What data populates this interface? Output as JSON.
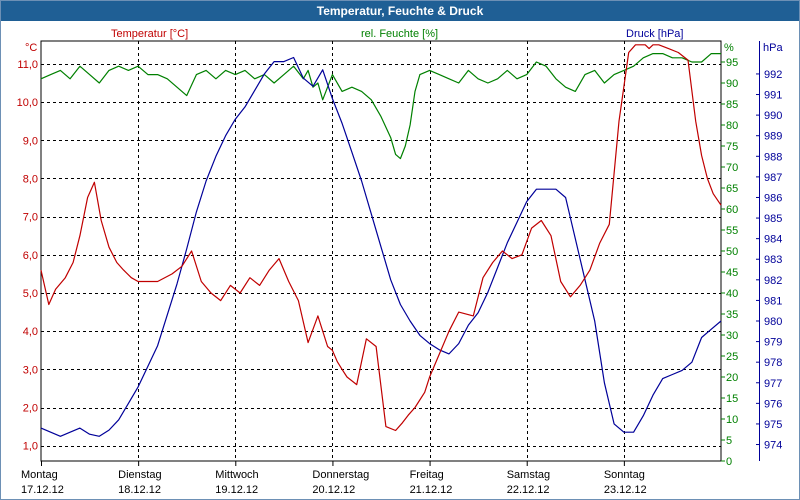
{
  "window": {
    "title": "Temperatur, Feuchte & Druck"
  },
  "colors": {
    "temperature": "#c00000",
    "humidity": "#008000",
    "pressure": "#000099",
    "titlebar": "#1f5f95",
    "grid": "#000000"
  },
  "chart_data": {
    "type": "line",
    "title": "Temperatur, Feuchte & Druck",
    "grid": true,
    "x_categories": [
      {
        "day": "Montag",
        "date": "17.12.12"
      },
      {
        "day": "Dienstag",
        "date": "18.12.12"
      },
      {
        "day": "Mittwoch",
        "date": "19.12.12"
      },
      {
        "day": "Donnerstag",
        "date": "20.12.12"
      },
      {
        "day": "Freitag",
        "date": "21.12.12"
      },
      {
        "day": "Samstag",
        "date": "22.12.12"
      },
      {
        "day": "Sonntag",
        "date": "23.12.12"
      }
    ],
    "x_range_days": [
      0,
      7
    ],
    "axes": {
      "temperature": {
        "label": "Temperatur [°C]",
        "unit": "°C",
        "range": [
          0.6,
          11.6
        ],
        "ticks": [
          "1,0",
          "2,0",
          "3,0",
          "4,0",
          "5,0",
          "6,0",
          "7,0",
          "8,0",
          "9,0",
          "10,0",
          "11,0"
        ],
        "tick_values": [
          1,
          2,
          3,
          4,
          5,
          6,
          7,
          8,
          9,
          10,
          11
        ]
      },
      "humidity": {
        "label": "rel. Feuchte [%]",
        "unit": "%",
        "range": [
          0,
          100
        ],
        "ticks": [
          "0",
          "5",
          "10",
          "15",
          "20",
          "25",
          "30",
          "35",
          "40",
          "45",
          "50",
          "55",
          "60",
          "65",
          "70",
          "75",
          "80",
          "85",
          "90",
          "95"
        ],
        "tick_values": [
          0,
          5,
          10,
          15,
          20,
          25,
          30,
          35,
          40,
          45,
          50,
          55,
          60,
          65,
          70,
          75,
          80,
          85,
          90,
          95
        ]
      },
      "pressure": {
        "label": "Druck [hPa]",
        "unit": "hPa",
        "range": [
          973.2,
          993.6
        ],
        "ticks": [
          "974",
          "975",
          "976",
          "977",
          "978",
          "979",
          "980",
          "981",
          "982",
          "983",
          "984",
          "985",
          "986",
          "987",
          "988",
          "989",
          "990",
          "991",
          "992"
        ],
        "tick_values": [
          974,
          975,
          976,
          977,
          978,
          979,
          980,
          981,
          982,
          983,
          984,
          985,
          986,
          987,
          988,
          989,
          990,
          991,
          992
        ]
      }
    },
    "series": [
      {
        "name": "Temperatur [°C]",
        "axis": "temperature",
        "x": [
          0.0,
          0.08,
          0.15,
          0.25,
          0.33,
          0.4,
          0.48,
          0.55,
          0.62,
          0.7,
          0.78,
          0.85,
          0.93,
          1.0,
          1.1,
          1.2,
          1.35,
          1.45,
          1.55,
          1.65,
          1.75,
          1.85,
          1.95,
          2.05,
          2.15,
          2.25,
          2.35,
          2.45,
          2.55,
          2.65,
          2.75,
          2.85,
          2.95,
          3.0,
          3.05,
          3.1,
          3.15,
          3.25,
          3.35,
          3.45,
          3.55,
          3.65,
          3.72,
          3.78,
          3.85,
          3.95,
          4.0,
          4.1,
          4.2,
          4.3,
          4.45,
          4.55,
          4.65,
          4.75,
          4.85,
          4.95,
          5.05,
          5.15,
          5.25,
          5.35,
          5.45,
          5.55,
          5.65,
          5.75,
          5.85,
          5.95,
          6.05,
          6.12,
          6.18,
          6.22,
          6.26,
          6.3,
          6.36,
          6.46,
          6.56,
          6.66,
          6.74,
          6.8,
          6.86,
          6.92,
          7.0
        ],
        "values": [
          5.6,
          4.7,
          5.1,
          5.4,
          5.8,
          6.5,
          7.5,
          7.9,
          6.9,
          6.2,
          5.8,
          5.6,
          5.4,
          5.3,
          5.3,
          5.3,
          5.5,
          5.7,
          6.1,
          5.3,
          5.0,
          4.8,
          5.2,
          5.0,
          5.4,
          5.2,
          5.6,
          5.9,
          5.3,
          4.8,
          3.7,
          4.4,
          3.6,
          3.5,
          3.2,
          3.0,
          2.8,
          2.6,
          3.8,
          3.6,
          1.5,
          1.4,
          1.6,
          1.8,
          2.0,
          2.4,
          2.8,
          3.4,
          4.0,
          4.5,
          4.4,
          5.4,
          5.8,
          6.1,
          5.9,
          6.0,
          6.7,
          6.9,
          6.5,
          5.3,
          4.9,
          5.2,
          5.6,
          6.3,
          6.8,
          9.5,
          11.3,
          11.5,
          11.5,
          11.5,
          11.4,
          11.5,
          11.5,
          11.4,
          11.3,
          11.1,
          9.5,
          8.6,
          8.0,
          7.6,
          7.3
        ]
      },
      {
        "name": "rel. Feuchte [%]",
        "axis": "humidity",
        "x": [
          0.0,
          0.1,
          0.2,
          0.3,
          0.4,
          0.5,
          0.6,
          0.7,
          0.8,
          0.9,
          1.0,
          1.1,
          1.2,
          1.3,
          1.4,
          1.5,
          1.6,
          1.7,
          1.8,
          1.9,
          2.0,
          2.1,
          2.2,
          2.3,
          2.4,
          2.5,
          2.6,
          2.7,
          2.75,
          2.8,
          2.85,
          2.9,
          3.0,
          3.1,
          3.2,
          3.3,
          3.4,
          3.5,
          3.6,
          3.65,
          3.7,
          3.75,
          3.8,
          3.85,
          3.9,
          4.0,
          4.1,
          4.2,
          4.3,
          4.4,
          4.5,
          4.6,
          4.7,
          4.8,
          4.9,
          5.0,
          5.1,
          5.2,
          5.3,
          5.4,
          5.5,
          5.6,
          5.7,
          5.8,
          5.9,
          6.0,
          6.1,
          6.2,
          6.3,
          6.4,
          6.5,
          6.6,
          6.7,
          6.8,
          6.9,
          7.0
        ],
        "values": [
          91,
          92,
          93,
          91,
          94,
          92,
          90,
          93,
          94,
          93,
          94,
          92,
          92,
          91,
          89,
          87,
          92,
          93,
          91,
          93,
          92,
          93,
          91,
          92,
          90,
          92,
          94,
          91,
          93,
          89,
          90,
          86,
          92,
          88,
          89,
          88,
          86,
          82,
          77,
          73,
          72,
          75,
          80,
          88,
          92,
          93,
          92,
          91,
          90,
          93,
          91,
          90,
          91,
          93,
          91,
          92,
          95,
          94,
          91,
          89,
          88,
          92,
          93,
          90,
          92,
          93,
          94,
          96,
          97,
          97,
          96,
          96,
          95,
          95,
          97,
          97
        ]
      },
      {
        "name": "Druck [hPa]",
        "axis": "pressure",
        "x": [
          0.0,
          0.1,
          0.2,
          0.3,
          0.4,
          0.5,
          0.6,
          0.7,
          0.8,
          0.9,
          1.0,
          1.1,
          1.2,
          1.3,
          1.4,
          1.5,
          1.6,
          1.7,
          1.8,
          1.9,
          2.0,
          2.1,
          2.2,
          2.3,
          2.4,
          2.5,
          2.6,
          2.7,
          2.8,
          2.9,
          3.0,
          3.1,
          3.2,
          3.3,
          3.4,
          3.5,
          3.6,
          3.7,
          3.8,
          3.9,
          4.0,
          4.1,
          4.2,
          4.3,
          4.4,
          4.5,
          4.6,
          4.7,
          4.8,
          4.9,
          5.0,
          5.1,
          5.2,
          5.3,
          5.4,
          5.5,
          5.6,
          5.7,
          5.8,
          5.9,
          6.0,
          6.1,
          6.2,
          6.3,
          6.4,
          6.5,
          6.6,
          6.7,
          6.8,
          6.9,
          7.0
        ],
        "values": [
          974.8,
          974.6,
          974.4,
          974.6,
          974.8,
          974.5,
          974.4,
          974.7,
          975.2,
          976.0,
          976.8,
          977.8,
          978.8,
          980.3,
          981.8,
          983.5,
          985.3,
          986.8,
          988.0,
          989.0,
          989.8,
          990.4,
          991.2,
          992.0,
          992.6,
          992.6,
          992.8,
          991.8,
          991.4,
          992.2,
          990.8,
          989.6,
          988.2,
          986.8,
          985.2,
          983.6,
          982.0,
          980.8,
          980.0,
          979.3,
          978.9,
          978.6,
          978.4,
          978.9,
          979.8,
          980.4,
          981.4,
          982.6,
          983.8,
          984.8,
          985.8,
          986.4,
          986.4,
          986.4,
          986.0,
          984.0,
          982.0,
          980.0,
          977.0,
          975.0,
          974.6,
          974.6,
          975.4,
          976.4,
          977.2,
          977.4,
          977.6,
          978.0,
          979.2,
          979.6,
          980.0
        ]
      }
    ]
  }
}
